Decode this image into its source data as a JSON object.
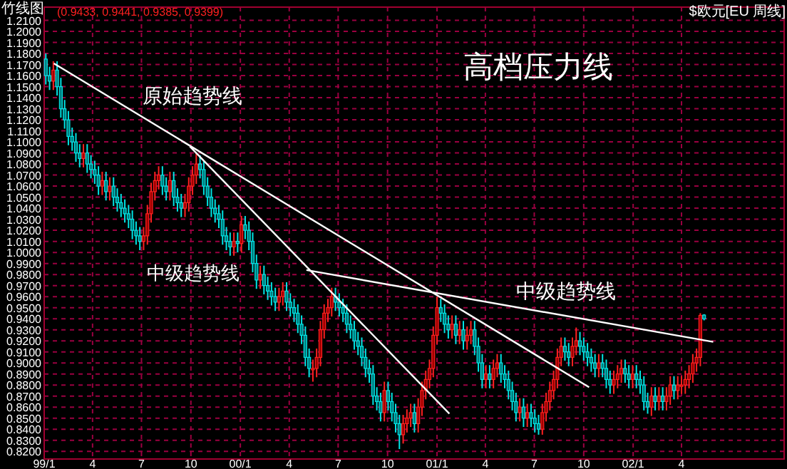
{
  "chart_data": {
    "type": "candlestick",
    "title": "高档压力线",
    "annotations": [
      "竹线图",
      "(0.9433, 0.9441, 0.9385, 0.9399)",
      "$欧元[EU 周线]",
      "原始趋势线",
      "中级趋势线",
      "中级趋势线"
    ],
    "x": [
      "1999-01-04",
      "1999-01-11",
      "1999-01-18",
      "1999-01-25",
      "1999-02-01",
      "1999-02-08",
      "1999-02-15",
      "1999-02-22",
      "1999-03-01",
      "1999-03-08",
      "1999-03-15",
      "1999-03-22",
      "1999-03-29",
      "1999-04-05",
      "1999-04-12",
      "1999-04-19",
      "1999-04-26",
      "1999-05-03",
      "1999-05-10",
      "1999-05-17",
      "1999-05-24",
      "1999-05-31",
      "1999-06-07",
      "1999-06-14",
      "1999-06-21",
      "1999-06-28",
      "1999-07-05",
      "1999-07-12",
      "1999-07-19",
      "1999-07-26",
      "1999-08-02",
      "1999-08-09",
      "1999-08-16",
      "1999-08-23",
      "1999-08-30",
      "1999-09-06",
      "1999-09-13",
      "1999-09-20",
      "1999-09-27",
      "1999-10-04",
      "1999-10-11",
      "1999-10-18",
      "1999-10-25",
      "1999-11-01",
      "1999-11-08",
      "1999-11-15",
      "1999-11-22",
      "1999-11-29",
      "1999-12-06",
      "1999-12-13",
      "1999-12-20",
      "1999-12-27",
      "2000-01-03",
      "2000-01-10",
      "2000-01-17",
      "2000-01-24",
      "2000-01-31",
      "2000-02-07",
      "2000-02-14",
      "2000-02-21",
      "2000-02-28",
      "2000-03-06",
      "2000-03-13",
      "2000-03-20",
      "2000-03-27",
      "2000-04-03",
      "2000-04-10",
      "2000-04-17",
      "2000-04-24",
      "2000-05-01",
      "2000-05-08",
      "2000-05-15",
      "2000-05-22",
      "2000-05-29",
      "2000-06-05",
      "2000-06-12",
      "2000-06-19",
      "2000-06-26",
      "2000-07-03",
      "2000-07-10",
      "2000-07-17",
      "2000-07-24",
      "2000-07-31",
      "2000-08-07",
      "2000-08-14",
      "2000-08-21",
      "2000-08-28",
      "2000-09-04",
      "2000-09-11",
      "2000-09-18",
      "2000-09-25",
      "2000-10-02",
      "2000-10-09",
      "2000-10-16",
      "2000-10-23",
      "2000-10-30",
      "2000-11-06",
      "2000-11-13",
      "2000-11-20",
      "2000-11-27",
      "2000-12-04",
      "2000-12-11",
      "2000-12-18",
      "2000-12-25",
      "2001-01-01",
      "2001-01-08",
      "2001-01-15",
      "2001-01-22",
      "2001-01-29",
      "2001-02-05",
      "2001-02-12",
      "2001-02-19",
      "2001-02-26",
      "2001-03-05",
      "2001-03-12",
      "2001-03-19",
      "2001-03-26",
      "2001-04-02",
      "2001-04-09",
      "2001-04-16",
      "2001-04-23",
      "2001-04-30",
      "2001-05-07",
      "2001-05-14",
      "2001-05-21",
      "2001-05-28",
      "2001-06-04",
      "2001-06-11",
      "2001-06-18",
      "2001-06-25",
      "2001-07-02",
      "2001-07-09",
      "2001-07-16",
      "2001-07-23",
      "2001-07-30",
      "2001-08-06",
      "2001-08-13",
      "2001-08-20",
      "2001-08-27",
      "2001-09-03",
      "2001-09-10",
      "2001-09-17",
      "2001-09-24",
      "2001-10-01",
      "2001-10-08",
      "2001-10-15",
      "2001-10-22",
      "2001-10-29",
      "2001-11-05",
      "2001-11-12",
      "2001-11-19",
      "2001-11-26",
      "2001-12-03",
      "2001-12-10",
      "2001-12-17",
      "2001-12-24",
      "2001-12-31",
      "2002-01-07",
      "2002-01-14",
      "2002-01-21",
      "2002-01-28",
      "2002-02-04",
      "2002-02-11",
      "2002-02-18",
      "2002-02-25",
      "2002-03-04",
      "2002-03-11",
      "2002-03-18",
      "2002-03-25",
      "2002-04-01",
      "2002-04-08",
      "2002-04-15",
      "2002-04-22",
      "2002-04-29",
      "2002-05-06",
      "2002-05-13"
    ],
    "ohlc": [
      [
        1.175,
        1.18,
        1.152,
        1.16
      ],
      [
        1.16,
        1.168,
        1.147,
        1.155
      ],
      [
        1.155,
        1.173,
        1.147,
        1.165
      ],
      [
        1.165,
        1.173,
        1.142,
        1.15
      ],
      [
        1.15,
        1.158,
        1.122,
        1.13
      ],
      [
        1.13,
        1.138,
        1.112,
        1.12
      ],
      [
        1.12,
        1.128,
        1.097,
        1.105
      ],
      [
        1.105,
        1.113,
        1.092,
        1.1
      ],
      [
        1.1,
        1.108,
        1.082,
        1.09
      ],
      [
        1.09,
        1.098,
        1.077,
        1.085
      ],
      [
        1.085,
        1.098,
        1.077,
        1.09
      ],
      [
        1.09,
        1.098,
        1.072,
        1.08
      ],
      [
        1.08,
        1.088,
        1.067,
        1.075
      ],
      [
        1.075,
        1.083,
        1.062,
        1.07
      ],
      [
        1.07,
        1.078,
        1.052,
        1.06
      ],
      [
        1.06,
        1.073,
        1.052,
        1.065
      ],
      [
        1.065,
        1.073,
        1.047,
        1.055
      ],
      [
        1.055,
        1.068,
        1.047,
        1.06
      ],
      [
        1.06,
        1.068,
        1.042,
        1.05
      ],
      [
        1.05,
        1.058,
        1.037,
        1.045
      ],
      [
        1.045,
        1.053,
        1.032,
        1.04
      ],
      [
        1.04,
        1.048,
        1.027,
        1.035
      ],
      [
        1.035,
        1.043,
        1.022,
        1.03
      ],
      [
        1.03,
        1.038,
        1.012,
        1.02
      ],
      [
        1.02,
        1.028,
        1.007,
        1.015
      ],
      [
        1.015,
        1.023,
        1.002,
        1.01
      ],
      [
        1.01,
        1.023,
        1.002,
        1.015
      ],
      [
        1.015,
        1.043,
        1.007,
        1.035
      ],
      [
        1.035,
        1.063,
        1.027,
        1.055
      ],
      [
        1.055,
        1.073,
        1.047,
        1.065
      ],
      [
        1.065,
        1.078,
        1.057,
        1.07
      ],
      [
        1.07,
        1.078,
        1.052,
        1.06
      ],
      [
        1.06,
        1.068,
        1.047,
        1.055
      ],
      [
        1.055,
        1.073,
        1.047,
        1.065
      ],
      [
        1.065,
        1.073,
        1.042,
        1.05
      ],
      [
        1.05,
        1.058,
        1.037,
        1.045
      ],
      [
        1.045,
        1.053,
        1.032,
        1.04
      ],
      [
        1.04,
        1.053,
        1.032,
        1.045
      ],
      [
        1.045,
        1.068,
        1.037,
        1.06
      ],
      [
        1.06,
        1.078,
        1.052,
        1.07
      ],
      [
        1.07,
        1.09,
        1.062,
        1.08
      ],
      [
        1.08,
        1.088,
        1.067,
        1.075
      ],
      [
        1.075,
        1.083,
        1.052,
        1.06
      ],
      [
        1.06,
        1.068,
        1.042,
        1.05
      ],
      [
        1.05,
        1.058,
        1.032,
        1.04
      ],
      [
        1.04,
        1.048,
        1.027,
        1.035
      ],
      [
        1.035,
        1.043,
        1.022,
        1.03
      ],
      [
        1.03,
        1.038,
        1.007,
        1.015
      ],
      [
        1.015,
        1.023,
        1.002,
        1.01
      ],
      [
        1.01,
        1.018,
        0.997,
        1.005
      ],
      [
        1.005,
        1.018,
        0.997,
        1.01
      ],
      [
        1.01,
        1.018,
        1.0,
        1.008
      ],
      [
        1.008,
        1.033,
        1.0,
        1.025
      ],
      [
        1.025,
        1.033,
        1.012,
        1.02
      ],
      [
        1.02,
        1.028,
        1.002,
        1.01
      ],
      [
        1.01,
        1.018,
        0.982,
        0.99
      ],
      [
        0.99,
        0.998,
        0.967,
        0.975
      ],
      [
        0.975,
        0.988,
        0.967,
        0.98
      ],
      [
        0.98,
        0.988,
        0.962,
        0.97
      ],
      [
        0.97,
        0.978,
        0.957,
        0.965
      ],
      [
        0.965,
        0.973,
        0.952,
        0.96
      ],
      [
        0.96,
        0.968,
        0.947,
        0.955
      ],
      [
        0.955,
        0.968,
        0.947,
        0.96
      ],
      [
        0.96,
        0.973,
        0.952,
        0.965
      ],
      [
        0.965,
        0.973,
        0.947,
        0.955
      ],
      [
        0.955,
        0.963,
        0.942,
        0.95
      ],
      [
        0.95,
        0.958,
        0.937,
        0.945
      ],
      [
        0.945,
        0.953,
        0.927,
        0.935
      ],
      [
        0.935,
        0.943,
        0.917,
        0.925
      ],
      [
        0.925,
        0.933,
        0.897,
        0.905
      ],
      [
        0.905,
        0.913,
        0.887,
        0.895
      ],
      [
        0.895,
        0.903,
        0.883,
        0.895
      ],
      [
        0.895,
        0.913,
        0.887,
        0.905
      ],
      [
        0.905,
        0.938,
        0.897,
        0.93
      ],
      [
        0.93,
        0.953,
        0.922,
        0.945
      ],
      [
        0.945,
        0.958,
        0.937,
        0.95
      ],
      [
        0.95,
        0.968,
        0.942,
        0.96
      ],
      [
        0.96,
        0.968,
        0.947,
        0.955
      ],
      [
        0.955,
        0.963,
        0.942,
        0.95
      ],
      [
        0.95,
        0.958,
        0.937,
        0.945
      ],
      [
        0.945,
        0.953,
        0.927,
        0.935
      ],
      [
        0.935,
        0.943,
        0.922,
        0.93
      ],
      [
        0.93,
        0.938,
        0.912,
        0.92
      ],
      [
        0.92,
        0.928,
        0.907,
        0.915
      ],
      [
        0.915,
        0.923,
        0.897,
        0.905
      ],
      [
        0.905,
        0.913,
        0.887,
        0.895
      ],
      [
        0.895,
        0.903,
        0.882,
        0.89
      ],
      [
        0.89,
        0.898,
        0.862,
        0.87
      ],
      [
        0.87,
        0.878,
        0.857,
        0.865
      ],
      [
        0.865,
        0.873,
        0.847,
        0.855
      ],
      [
        0.855,
        0.883,
        0.847,
        0.875
      ],
      [
        0.875,
        0.883,
        0.857,
        0.865
      ],
      [
        0.865,
        0.873,
        0.847,
        0.855
      ],
      [
        0.855,
        0.863,
        0.837,
        0.845
      ],
      [
        0.845,
        0.853,
        0.822,
        0.835
      ],
      [
        0.835,
        0.853,
        0.827,
        0.845
      ],
      [
        0.845,
        0.858,
        0.837,
        0.85
      ],
      [
        0.85,
        0.863,
        0.842,
        0.855
      ],
      [
        0.855,
        0.863,
        0.837,
        0.845
      ],
      [
        0.845,
        0.868,
        0.837,
        0.86
      ],
      [
        0.86,
        0.883,
        0.852,
        0.875
      ],
      [
        0.875,
        0.893,
        0.867,
        0.885
      ],
      [
        0.885,
        0.903,
        0.877,
        0.895
      ],
      [
        0.895,
        0.933,
        0.887,
        0.925
      ],
      [
        0.925,
        0.96,
        0.917,
        0.95
      ],
      [
        0.95,
        0.958,
        0.937,
        0.945
      ],
      [
        0.945,
        0.953,
        0.927,
        0.935
      ],
      [
        0.935,
        0.943,
        0.922,
        0.93
      ],
      [
        0.93,
        0.943,
        0.922,
        0.935
      ],
      [
        0.935,
        0.943,
        0.917,
        0.925
      ],
      [
        0.925,
        0.938,
        0.917,
        0.93
      ],
      [
        0.93,
        0.938,
        0.912,
        0.92
      ],
      [
        0.92,
        0.933,
        0.912,
        0.925
      ],
      [
        0.925,
        0.938,
        0.917,
        0.93
      ],
      [
        0.93,
        0.938,
        0.907,
        0.915
      ],
      [
        0.915,
        0.923,
        0.892,
        0.9
      ],
      [
        0.9,
        0.908,
        0.877,
        0.885
      ],
      [
        0.885,
        0.898,
        0.877,
        0.89
      ],
      [
        0.89,
        0.898,
        0.877,
        0.885
      ],
      [
        0.885,
        0.903,
        0.877,
        0.895
      ],
      [
        0.895,
        0.908,
        0.887,
        0.9
      ],
      [
        0.9,
        0.908,
        0.882,
        0.89
      ],
      [
        0.89,
        0.898,
        0.877,
        0.885
      ],
      [
        0.885,
        0.893,
        0.867,
        0.875
      ],
      [
        0.875,
        0.883,
        0.857,
        0.865
      ],
      [
        0.865,
        0.873,
        0.847,
        0.855
      ],
      [
        0.855,
        0.868,
        0.847,
        0.86
      ],
      [
        0.86,
        0.868,
        0.842,
        0.85
      ],
      [
        0.85,
        0.863,
        0.842,
        0.855
      ],
      [
        0.855,
        0.863,
        0.842,
        0.85
      ],
      [
        0.85,
        0.858,
        0.837,
        0.845
      ],
      [
        0.845,
        0.853,
        0.835,
        0.84
      ],
      [
        0.84,
        0.863,
        0.835,
        0.855
      ],
      [
        0.855,
        0.873,
        0.847,
        0.865
      ],
      [
        0.865,
        0.883,
        0.857,
        0.875
      ],
      [
        0.875,
        0.893,
        0.867,
        0.885
      ],
      [
        0.885,
        0.913,
        0.877,
        0.905
      ],
      [
        0.905,
        0.923,
        0.897,
        0.915
      ],
      [
        0.915,
        0.923,
        0.902,
        0.91
      ],
      [
        0.91,
        0.918,
        0.897,
        0.905
      ],
      [
        0.905,
        0.923,
        0.897,
        0.915
      ],
      [
        0.915,
        0.932,
        0.907,
        0.92
      ],
      [
        0.92,
        0.928,
        0.907,
        0.915
      ],
      [
        0.915,
        0.923,
        0.902,
        0.91
      ],
      [
        0.91,
        0.918,
        0.897,
        0.905
      ],
      [
        0.905,
        0.913,
        0.892,
        0.9
      ],
      [
        0.9,
        0.908,
        0.887,
        0.895
      ],
      [
        0.895,
        0.908,
        0.887,
        0.9
      ],
      [
        0.9,
        0.908,
        0.887,
        0.895
      ],
      [
        0.895,
        0.903,
        0.877,
        0.885
      ],
      [
        0.885,
        0.893,
        0.872,
        0.88
      ],
      [
        0.88,
        0.893,
        0.872,
        0.885
      ],
      [
        0.885,
        0.898,
        0.877,
        0.89
      ],
      [
        0.89,
        0.903,
        0.882,
        0.895
      ],
      [
        0.895,
        0.903,
        0.882,
        0.89
      ],
      [
        0.89,
        0.898,
        0.877,
        0.885
      ],
      [
        0.885,
        0.898,
        0.877,
        0.89
      ],
      [
        0.89,
        0.898,
        0.877,
        0.885
      ],
      [
        0.885,
        0.893,
        0.872,
        0.88
      ],
      [
        0.88,
        0.888,
        0.857,
        0.865
      ],
      [
        0.865,
        0.873,
        0.854,
        0.86
      ],
      [
        0.86,
        0.878,
        0.852,
        0.87
      ],
      [
        0.87,
        0.878,
        0.857,
        0.865
      ],
      [
        0.865,
        0.878,
        0.857,
        0.87
      ],
      [
        0.87,
        0.878,
        0.857,
        0.865
      ],
      [
        0.865,
        0.878,
        0.857,
        0.87
      ],
      [
        0.87,
        0.888,
        0.862,
        0.88
      ],
      [
        0.88,
        0.888,
        0.867,
        0.875
      ],
      [
        0.875,
        0.888,
        0.867,
        0.88
      ],
      [
        0.88,
        0.888,
        0.872,
        0.88
      ],
      [
        0.88,
        0.893,
        0.872,
        0.885
      ],
      [
        0.885,
        0.898,
        0.877,
        0.89
      ],
      [
        0.89,
        0.908,
        0.882,
        0.9
      ],
      [
        0.9,
        0.913,
        0.892,
        0.905
      ],
      [
        0.905,
        0.945,
        0.897,
        0.943
      ],
      [
        0.9433,
        0.9441,
        0.9385,
        0.9399
      ]
    ],
    "series": [
      {
        "type": "line",
        "color": "#ffffff",
        "x": [
          "1999-01-19",
          "2001-10-11"
        ],
        "values": [
          1.171,
          0.878
        ]
      },
      {
        "type": "line",
        "color": "#ffffff",
        "x": [
          "1999-09-29",
          "2001-01-24"
        ],
        "values": [
          1.096,
          0.854
        ]
      },
      {
        "type": "line",
        "color": "#ffffff",
        "x": [
          "2000-05-03",
          "2002-05-30"
        ],
        "values": [
          0.984,
          0.919
        ]
      }
    ],
    "xlim": [
      "1999-01-01",
      "2002-10-09"
    ],
    "xticks": [
      {
        "value": "1999-01-01",
        "label": "99/1"
      },
      {
        "value": "1999-04-01",
        "label": "4"
      },
      {
        "value": "1999-07-01",
        "label": "7"
      },
      {
        "value": "1999-10-01",
        "label": "10"
      },
      {
        "value": "2000-01-01",
        "label": "00/1"
      },
      {
        "value": "2000-04-01",
        "label": "4"
      },
      {
        "value": "2000-07-01",
        "label": "7"
      },
      {
        "value": "2000-10-01",
        "label": "10"
      },
      {
        "value": "2001-01-01",
        "label": "01/1"
      },
      {
        "value": "2001-04-01",
        "label": "4"
      },
      {
        "value": "2001-07-01",
        "label": "7"
      },
      {
        "value": "2001-10-01",
        "label": "10"
      },
      {
        "value": "2002-01-01",
        "label": "02/1"
      },
      {
        "value": "2002-04-01",
        "label": "4"
      }
    ],
    "ylim": [
      0.813,
      1.222
    ],
    "yticks": [
      {
        "value": 0.82,
        "label": "0.8200"
      },
      {
        "value": 0.83,
        "label": "0.8300"
      },
      {
        "value": 0.84,
        "label": "0.8400"
      },
      {
        "value": 0.85,
        "label": "0.8500"
      },
      {
        "value": 0.86,
        "label": "0.8600"
      },
      {
        "value": 0.87,
        "label": "0.8700"
      },
      {
        "value": 0.88,
        "label": "0.8800"
      },
      {
        "value": 0.89,
        "label": "0.8900"
      },
      {
        "value": 0.9,
        "label": "0.9000"
      },
      {
        "value": 0.91,
        "label": "0.9100"
      },
      {
        "value": 0.92,
        "label": "0.9200"
      },
      {
        "value": 0.93,
        "label": "0.9300"
      },
      {
        "value": 0.94,
        "label": "0.9400"
      },
      {
        "value": 0.95,
        "label": "0.9500"
      },
      {
        "value": 0.96,
        "label": "0.9600"
      },
      {
        "value": 0.97,
        "label": "0.9700"
      },
      {
        "value": 0.98,
        "label": "0.9800"
      },
      {
        "value": 0.99,
        "label": "0.9900"
      },
      {
        "value": 1.0,
        "label": "1.0000"
      },
      {
        "value": 1.01,
        "label": "1.0100"
      },
      {
        "value": 1.02,
        "label": "1.0200"
      },
      {
        "value": 1.03,
        "label": "1.0300"
      },
      {
        "value": 1.04,
        "label": "1.0400"
      },
      {
        "value": 1.05,
        "label": "1.0500"
      },
      {
        "value": 1.06,
        "label": "1.0600"
      },
      {
        "value": 1.07,
        "label": "1.0700"
      },
      {
        "value": 1.08,
        "label": "1.0800"
      },
      {
        "value": 1.09,
        "label": "1.0900"
      },
      {
        "value": 1.1,
        "label": "1.1000"
      },
      {
        "value": 1.11,
        "label": "1.1100"
      },
      {
        "value": 1.12,
        "label": "1.1200"
      },
      {
        "value": 1.13,
        "label": "1.1300"
      },
      {
        "value": 1.14,
        "label": "1.1400"
      },
      {
        "value": 1.15,
        "label": "1.1500"
      },
      {
        "value": 1.16,
        "label": "1.1600"
      },
      {
        "value": 1.17,
        "label": "1.1700"
      },
      {
        "value": 1.18,
        "label": "1.1800"
      },
      {
        "value": 1.19,
        "label": "1.1900"
      },
      {
        "value": 1.2,
        "label": "1.2000"
      },
      {
        "value": 1.21,
        "label": "1.2100"
      }
    ],
    "grid": true
  }
}
